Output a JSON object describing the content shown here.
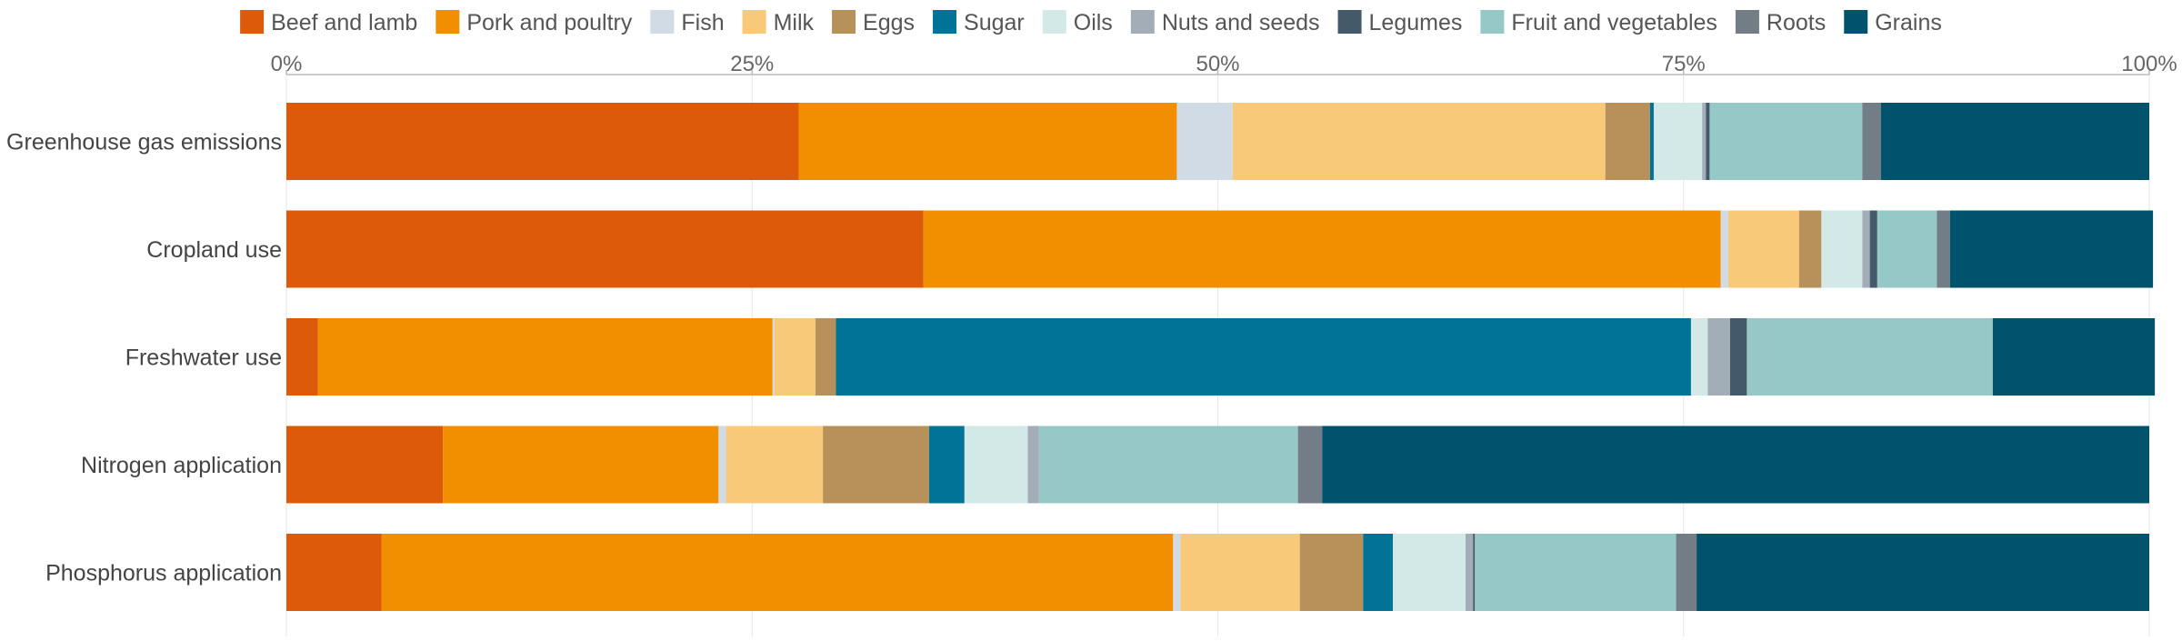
{
  "chart_data": {
    "type": "bar",
    "orientation": "horizontal",
    "stacked": true,
    "percent": true,
    "categories": [
      "Greenhouse gas emissions",
      "Cropland use",
      "Freshwater use",
      "Nitrogen application",
      "Phosphorus application"
    ],
    "xlim": [
      0,
      100
    ],
    "x_ticks": [
      "0%",
      "25%",
      "50%",
      "75%",
      "100%"
    ],
    "x_tick_values": [
      0,
      25,
      50,
      75,
      100
    ],
    "x_axis_position": "top",
    "grid": true,
    "legend_position": "top",
    "series": [
      {
        "name": "Beef and lamb",
        "color": "#dd5a0b",
        "values": [
          27.5,
          34.2,
          1.7,
          8.4,
          5.1
        ]
      },
      {
        "name": "Pork and poultry",
        "color": "#f28f00",
        "values": [
          20.3,
          42.8,
          24.4,
          14.8,
          42.5
        ]
      },
      {
        "name": "Fish",
        "color": "#d0dbe5",
        "values": [
          3.0,
          0.4,
          0.1,
          0.4,
          0.4
        ]
      },
      {
        "name": "Milk",
        "color": "#f9c97a",
        "values": [
          20.0,
          3.8,
          2.2,
          5.2,
          6.4
        ]
      },
      {
        "name": "Eggs",
        "color": "#b8915a",
        "values": [
          2.4,
          1.2,
          1.1,
          5.7,
          3.4
        ]
      },
      {
        "name": "Sugar",
        "color": "#007396",
        "values": [
          0.2,
          0.0,
          45.9,
          1.9,
          1.6
        ]
      },
      {
        "name": "Oils",
        "color": "#d2e9e7",
        "values": [
          2.6,
          2.2,
          0.9,
          3.4,
          3.9
        ]
      },
      {
        "name": "Nuts and seeds",
        "color": "#a2adb8",
        "values": [
          0.2,
          0.4,
          1.2,
          0.6,
          0.4
        ]
      },
      {
        "name": "Legumes",
        "color": "#445a6b",
        "values": [
          0.2,
          0.4,
          0.9,
          0.0,
          0.1
        ]
      },
      {
        "name": "Fruit and vegetables",
        "color": "#95c8c6",
        "values": [
          8.2,
          3.2,
          13.2,
          13.9,
          10.8
        ]
      },
      {
        "name": "Roots",
        "color": "#737d85",
        "values": [
          1.0,
          0.7,
          0.0,
          1.3,
          1.1
        ]
      },
      {
        "name": "Grains",
        "color": "#00526d",
        "values": [
          14.4,
          10.9,
          8.7,
          44.4,
          24.3
        ]
      }
    ]
  }
}
